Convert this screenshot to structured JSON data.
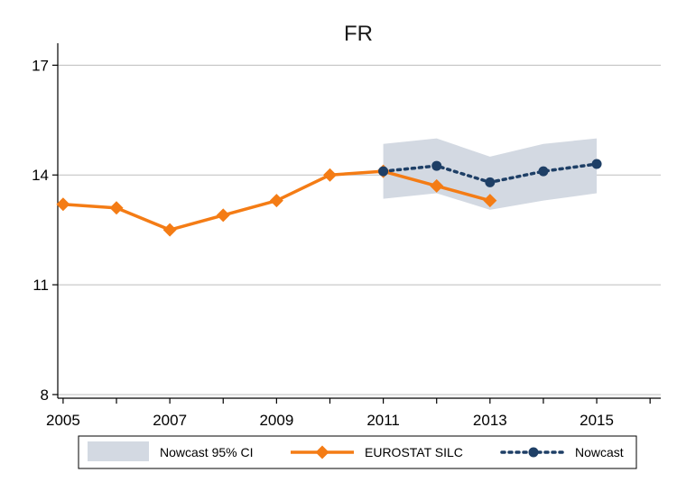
{
  "chart_data": {
    "type": "line",
    "title": "FR",
    "xlabel": "",
    "ylabel": "",
    "xlim": [
      2004.9,
      2016.2
    ],
    "ylim": [
      7.9,
      17.6
    ],
    "x_ticks": [
      2005,
      2007,
      2009,
      2011,
      2013,
      2015
    ],
    "y_ticks": [
      8,
      11,
      14,
      17
    ],
    "grid": "horizontal",
    "legend_position": "bottom",
    "colors": {
      "eurostat": "#f47c15",
      "nowcast": "#1e3f66",
      "ci_band": "#d3d9e2",
      "grid": "#bdbdbd",
      "axis": "#000000"
    },
    "series": [
      {
        "name": "Nowcast 95% CI",
        "kind": "band",
        "x": [
          2011,
          2012,
          2013,
          2014,
          2015
        ],
        "lower": [
          13.35,
          13.5,
          13.05,
          13.3,
          13.5
        ],
        "upper": [
          14.85,
          15.0,
          14.5,
          14.85,
          15.0
        ]
      },
      {
        "name": "EUROSTAT SILC",
        "kind": "line-diamond",
        "x": [
          2005,
          2006,
          2007,
          2008,
          2009,
          2010,
          2011,
          2012,
          2013
        ],
        "values": [
          13.2,
          13.1,
          12.5,
          12.9,
          13.3,
          14.0,
          14.1,
          13.7,
          13.3
        ]
      },
      {
        "name": "Nowcast",
        "kind": "dotted-circle",
        "x": [
          2011,
          2012,
          2013,
          2014,
          2015
        ],
        "values": [
          14.1,
          14.25,
          13.8,
          14.1,
          14.3
        ]
      }
    ]
  }
}
